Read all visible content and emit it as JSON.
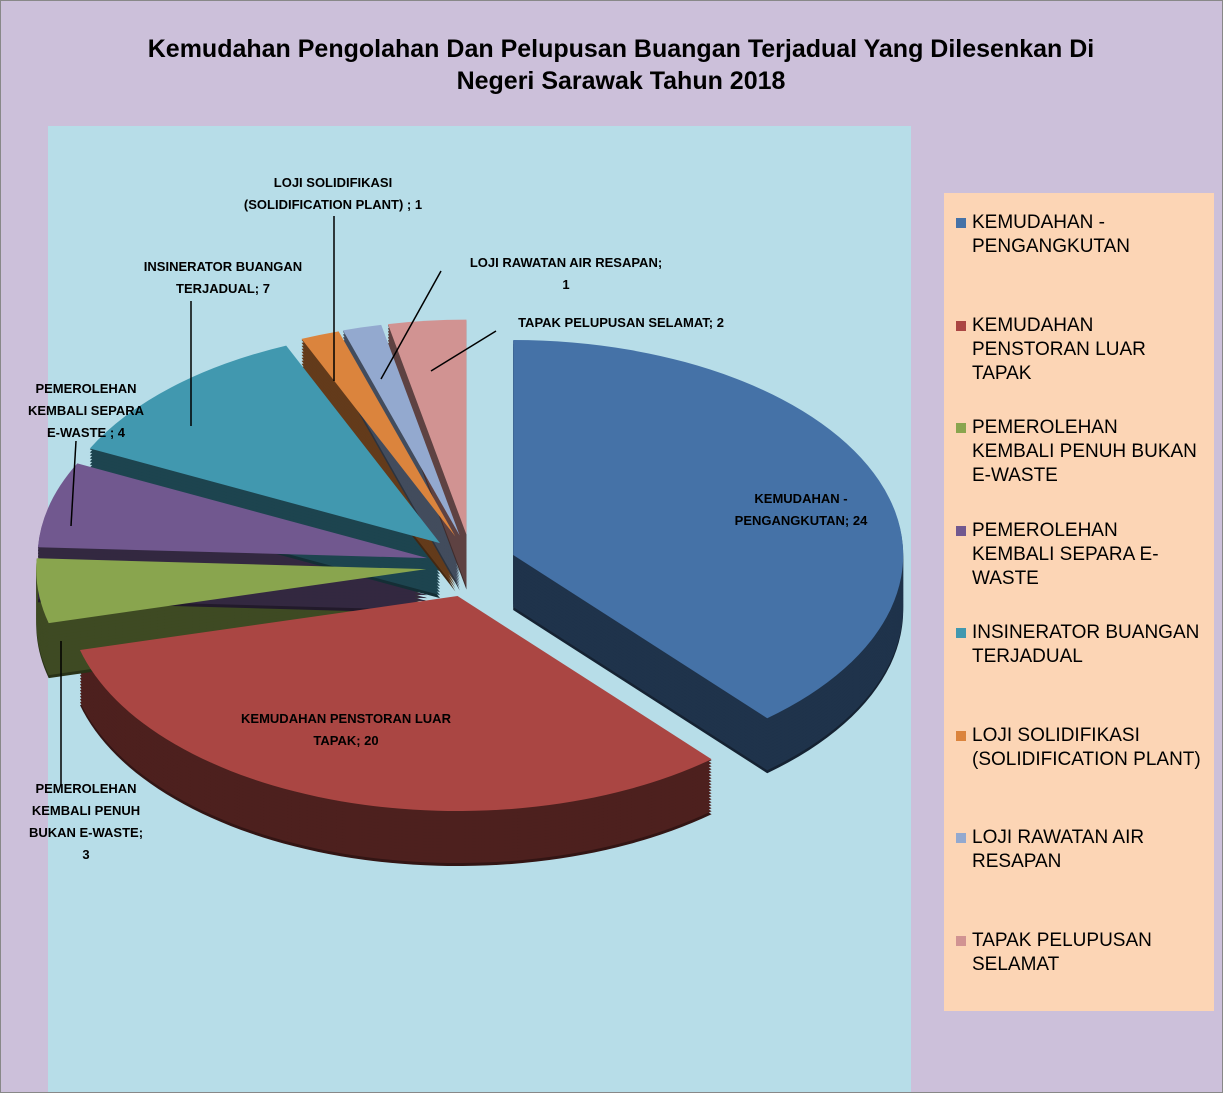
{
  "chart_data": {
    "type": "pie",
    "title": "Kemudahan Pengolahan Dan Pelupusan Buangan Terjadual Yang Dilesenkan Di Negeri Sarawak Tahun 2018",
    "categories": [
      "KEMUDAHAN - PENGANGKUTAN",
      "KEMUDAHAN PENSTORAN LUAR TAPAK",
      "PEMEROLEHAN KEMBALI PENUH BUKAN E-WASTE",
      "PEMEROLEHAN KEMBALI SEPARA E-WASTE",
      "INSINERATOR BUANGAN TERJADUAL",
      "LOJI SOLIDIFIKASI (SOLIDIFICATION PLANT)",
      "LOJI RAWATAN AIR RESAPAN",
      "TAPAK PELUPUSAN SELAMAT"
    ],
    "values": [
      24,
      20,
      3,
      4,
      7,
      1,
      1,
      2
    ],
    "value_labels": [
      "KEMUDAHAN - PENGANGKUTAN; 24",
      "KEMUDAHAN PENSTORAN LUAR TAPAK; 20",
      "PEMEROLEHAN KEMBALI PENUH BUKAN E-WASTE; 3",
      "PEMEROLEHAN KEMBALI SEPARA E-WASTE ; 4",
      "INSINERATOR BUANGAN TERJADUAL; 7",
      "LOJI SOLIDIFIKASI (SOLIDIFICATION PLANT) ; 1",
      "LOJI RAWATAN AIR RESAPAN; 1",
      "TAPAK PELUPUSAN SELAMAT; 2"
    ],
    "colors": [
      "#4572a7",
      "#aa4643",
      "#89a54e",
      "#71588f",
      "#4198af",
      "#db843d",
      "#93a9cf",
      "#d19392"
    ],
    "legend": "right"
  }
}
